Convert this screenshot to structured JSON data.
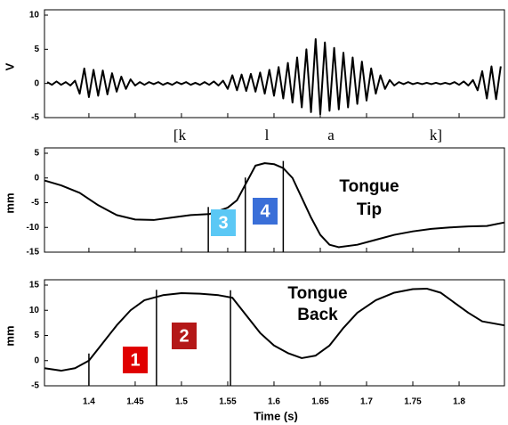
{
  "chart_data": [
    {
      "type": "line",
      "ylabel": "V",
      "xlim": [
        1.352,
        1.849
      ],
      "ylim": [
        -5,
        10
      ],
      "yticks": [
        -5,
        0,
        5,
        10
      ],
      "color": "#000000",
      "annotations": [
        "[k",
        "l",
        "a",
        "k]"
      ],
      "x": [
        1.355,
        1.36,
        1.365,
        1.37,
        1.375,
        1.38,
        1.385,
        1.39,
        1.395,
        1.4,
        1.405,
        1.41,
        1.415,
        1.42,
        1.425,
        1.43,
        1.435,
        1.44,
        1.445,
        1.45,
        1.455,
        1.46,
        1.465,
        1.47,
        1.475,
        1.48,
        1.485,
        1.49,
        1.495,
        1.5,
        1.505,
        1.51,
        1.515,
        1.52,
        1.525,
        1.53,
        1.535,
        1.54,
        1.545,
        1.55,
        1.555,
        1.56,
        1.565,
        1.57,
        1.575,
        1.58,
        1.585,
        1.59,
        1.595,
        1.6,
        1.605,
        1.61,
        1.615,
        1.62,
        1.625,
        1.63,
        1.635,
        1.64,
        1.645,
        1.65,
        1.655,
        1.66,
        1.665,
        1.67,
        1.675,
        1.68,
        1.685,
        1.69,
        1.695,
        1.7,
        1.705,
        1.71,
        1.715,
        1.72,
        1.725,
        1.73,
        1.735,
        1.74,
        1.745,
        1.75,
        1.755,
        1.76,
        1.765,
        1.77,
        1.775,
        1.78,
        1.785,
        1.79,
        1.795,
        1.8,
        1.805,
        1.81,
        1.815,
        1.82,
        1.825,
        1.83,
        1.835,
        1.84,
        1.845
      ],
      "values": [
        0.2,
        -0.2,
        0.3,
        -0.2,
        0.2,
        -0.3,
        0.4,
        -1.5,
        2.2,
        -2.0,
        2.0,
        -1.8,
        1.9,
        -1.6,
        1.5,
        -1.2,
        1.0,
        -0.8,
        0.6,
        -0.3,
        0.2,
        -0.2,
        0.2,
        -0.1,
        0.2,
        -0.2,
        0.1,
        -0.2,
        0.2,
        -0.1,
        0.2,
        -0.2,
        0.1,
        -0.2,
        0.2,
        -0.2,
        0.3,
        -0.3,
        0.4,
        -0.8,
        1.2,
        -1.0,
        1.3,
        -1.1,
        1.4,
        -1.2,
        1.6,
        -1.5,
        2.0,
        -1.8,
        2.4,
        -2.2,
        3.0,
        -2.8,
        3.8,
        -3.5,
        5.0,
        -4.2,
        6.5,
        -4.5,
        6.0,
        -4.0,
        5.2,
        -3.8,
        4.5,
        -3.5,
        3.8,
        -3.0,
        3.2,
        -2.5,
        2.2,
        -1.5,
        1.2,
        -0.8,
        0.5,
        -0.3,
        0.2,
        -0.1,
        0.2,
        -0.1,
        0.1,
        -0.1,
        0.1,
        -0.1,
        0.1,
        -0.1,
        0.1,
        -0.1,
        0.2,
        -0.2,
        0.3,
        -0.3,
        0.5,
        -1.0,
        1.8,
        -2.2,
        2.5,
        -2.3,
        2.5
      ]
    },
    {
      "type": "line",
      "ylabel": "mm",
      "xlim": [
        1.352,
        1.849
      ],
      "ylim": [
        -15,
        5
      ],
      "yticks": [
        5,
        0,
        -5,
        -10,
        -15
      ],
      "color": "#000000",
      "annotation_lines": [
        "Tongue",
        "Tip"
      ],
      "markers": [
        1.529,
        1.569,
        1.61
      ],
      "boxes": [
        {
          "label": "3",
          "color": "#5bc8f5"
        },
        {
          "label": "4",
          "color": "#3a6fd8"
        }
      ],
      "x": [
        1.352,
        1.37,
        1.39,
        1.41,
        1.43,
        1.45,
        1.47,
        1.49,
        1.51,
        1.53,
        1.55,
        1.56,
        1.57,
        1.58,
        1.59,
        1.6,
        1.61,
        1.62,
        1.63,
        1.64,
        1.65,
        1.66,
        1.67,
        1.69,
        1.71,
        1.73,
        1.75,
        1.77,
        1.79,
        1.81,
        1.83,
        1.849
      ],
      "values": [
        -0.5,
        -1.5,
        -3,
        -5.5,
        -7.5,
        -8.4,
        -8.5,
        -8,
        -7.5,
        -7.3,
        -6,
        -4.5,
        -1,
        2.5,
        3,
        2.8,
        2,
        0,
        -4,
        -8,
        -11.5,
        -13.5,
        -14,
        -13.5,
        -12.5,
        -11.5,
        -10.8,
        -10.3,
        -10,
        -9.8,
        -9.7,
        -9
      ]
    },
    {
      "type": "line",
      "ylabel": "mm",
      "xlabel": "Time (s)",
      "xlim": [
        1.352,
        1.849
      ],
      "ylim": [
        -5,
        15
      ],
      "yticks": [
        15,
        10,
        5,
        0,
        -5
      ],
      "xticks": [
        1.4,
        1.45,
        1.5,
        1.55,
        1.6,
        1.65,
        1.7,
        1.75,
        1.8
      ],
      "color": "#000000",
      "annotation_lines": [
        "Tongue",
        "Back"
      ],
      "markers": [
        1.4,
        1.473,
        1.553
      ],
      "boxes": [
        {
          "label": "1",
          "color": "#e00000"
        },
        {
          "label": "2",
          "color": "#b41818"
        }
      ],
      "x": [
        1.352,
        1.37,
        1.385,
        1.4,
        1.415,
        1.43,
        1.445,
        1.46,
        1.48,
        1.5,
        1.52,
        1.54,
        1.555,
        1.57,
        1.585,
        1.6,
        1.615,
        1.63,
        1.645,
        1.66,
        1.675,
        1.69,
        1.71,
        1.73,
        1.75,
        1.765,
        1.78,
        1.795,
        1.81,
        1.825,
        1.849
      ],
      "values": [
        -1.5,
        -2,
        -1.5,
        0,
        3.5,
        7,
        10,
        12,
        13,
        13.4,
        13.3,
        13,
        12.5,
        9,
        5.5,
        3,
        1.5,
        0.5,
        1,
        3,
        6.5,
        9.5,
        12,
        13.5,
        14.2,
        14.3,
        13.5,
        11.5,
        9.5,
        7.8,
        7
      ]
    }
  ]
}
